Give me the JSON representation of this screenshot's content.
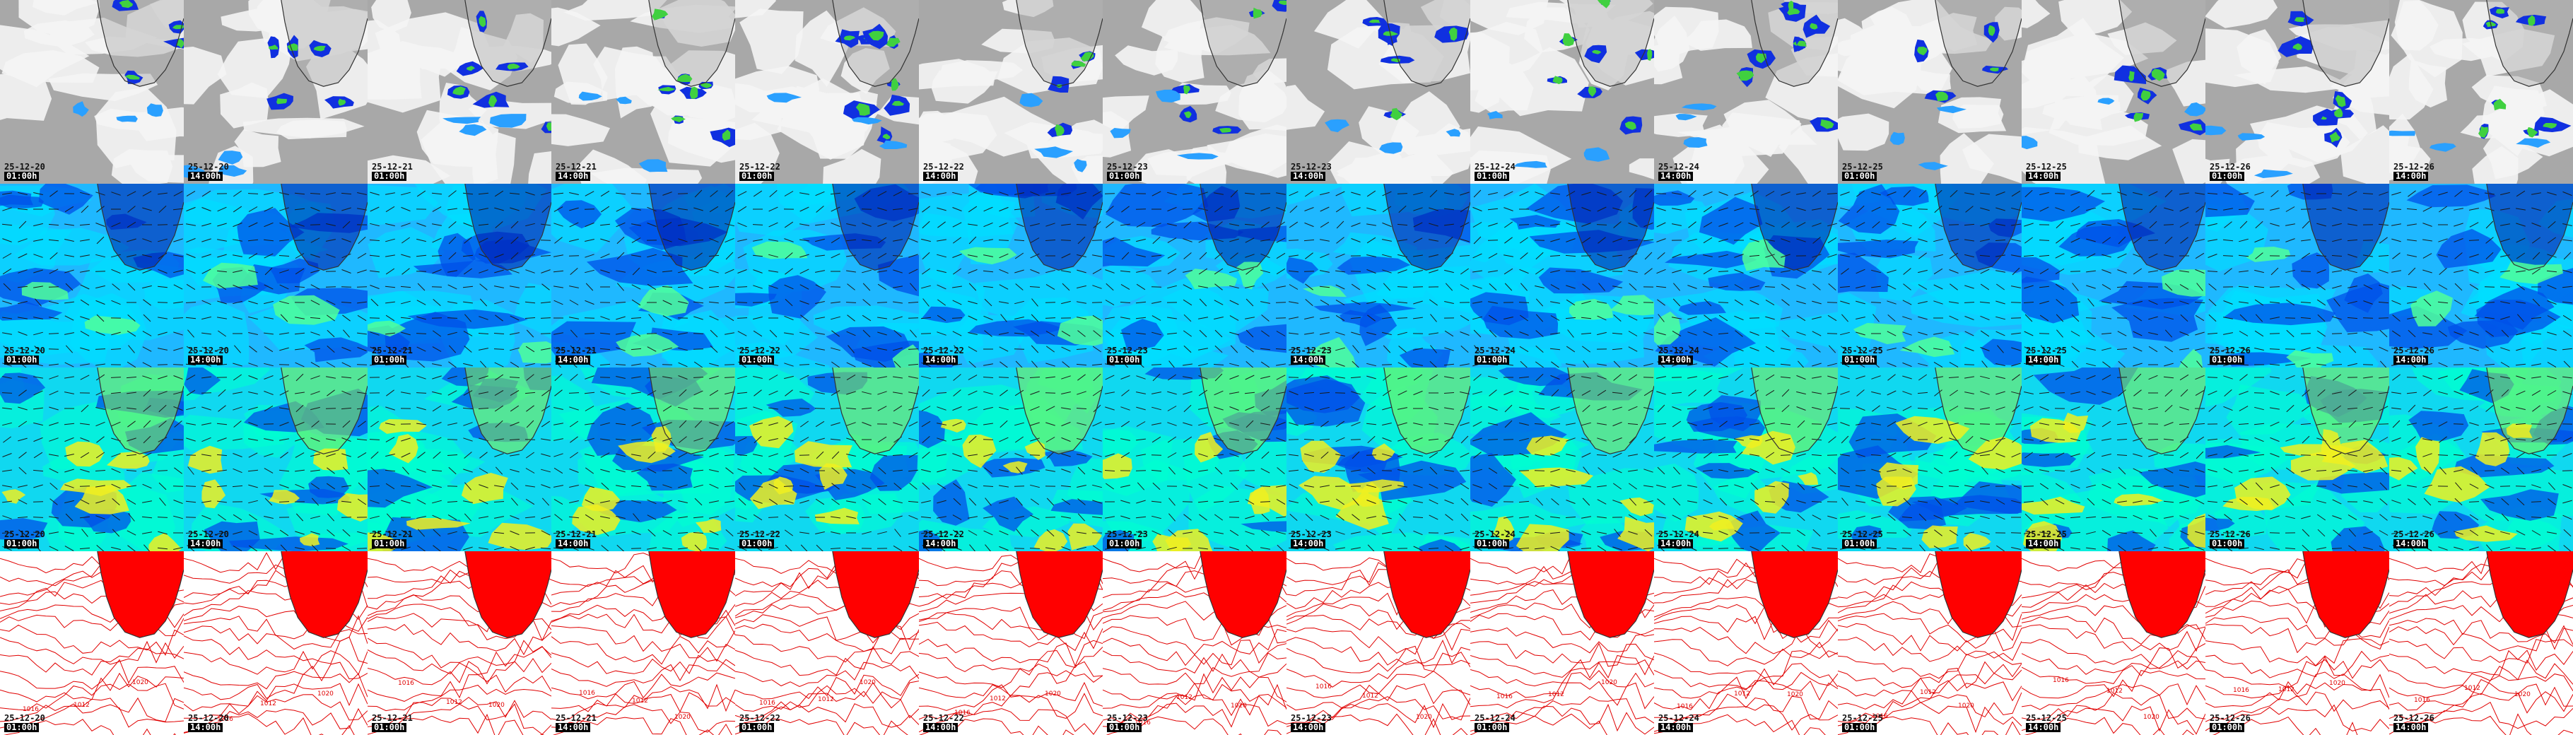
{
  "columns": [
    {
      "date": "25-12-20",
      "time": "01:00h"
    },
    {
      "date": "25-12-20",
      "time": "14:00h"
    },
    {
      "date": "25-12-21",
      "time": "01:00h"
    },
    {
      "date": "25-12-21",
      "time": "14:00h"
    },
    {
      "date": "25-12-22",
      "time": "01:00h"
    },
    {
      "date": "25-12-22",
      "time": "14:00h"
    },
    {
      "date": "25-12-23",
      "time": "01:00h"
    },
    {
      "date": "25-12-23",
      "time": "14:00h"
    },
    {
      "date": "25-12-24",
      "time": "01:00h"
    },
    {
      "date": "25-12-24",
      "time": "14:00h"
    },
    {
      "date": "25-12-25",
      "time": "01:00h"
    },
    {
      "date": "25-12-25",
      "time": "14:00h"
    },
    {
      "date": "25-12-26",
      "time": "01:00h"
    },
    {
      "date": "25-12-26",
      "time": "14:00h"
    }
  ],
  "rows": [
    {
      "name": "cloud-precip",
      "colors": {
        "bg": "#a8a8a8",
        "cloud": "#f4f4f4",
        "p1": "#1030e0",
        "p2": "#2aa0ff",
        "p3": "#40d040"
      }
    },
    {
      "name": "wind-low",
      "colors": {
        "bg": "#1fb8ff",
        "a": "#00e0ff",
        "b": "#0050e8",
        "c": "#0018a8",
        "d": "#50ff9a"
      }
    },
    {
      "name": "wind-high",
      "colors": {
        "bg": "#10d8f0",
        "a": "#00ffd0",
        "b": "#0050e8",
        "c": "#8cf050",
        "d": "#f0f020"
      }
    },
    {
      "name": "pressure",
      "colors": {
        "bg": "#ffffff",
        "line": "#e00000",
        "land": "#ff0000"
      }
    }
  ],
  "isobar_labels": [
    "1016",
    "1012",
    "1020",
    "1008",
    "1014",
    "1018"
  ],
  "coast_color": "#333333"
}
